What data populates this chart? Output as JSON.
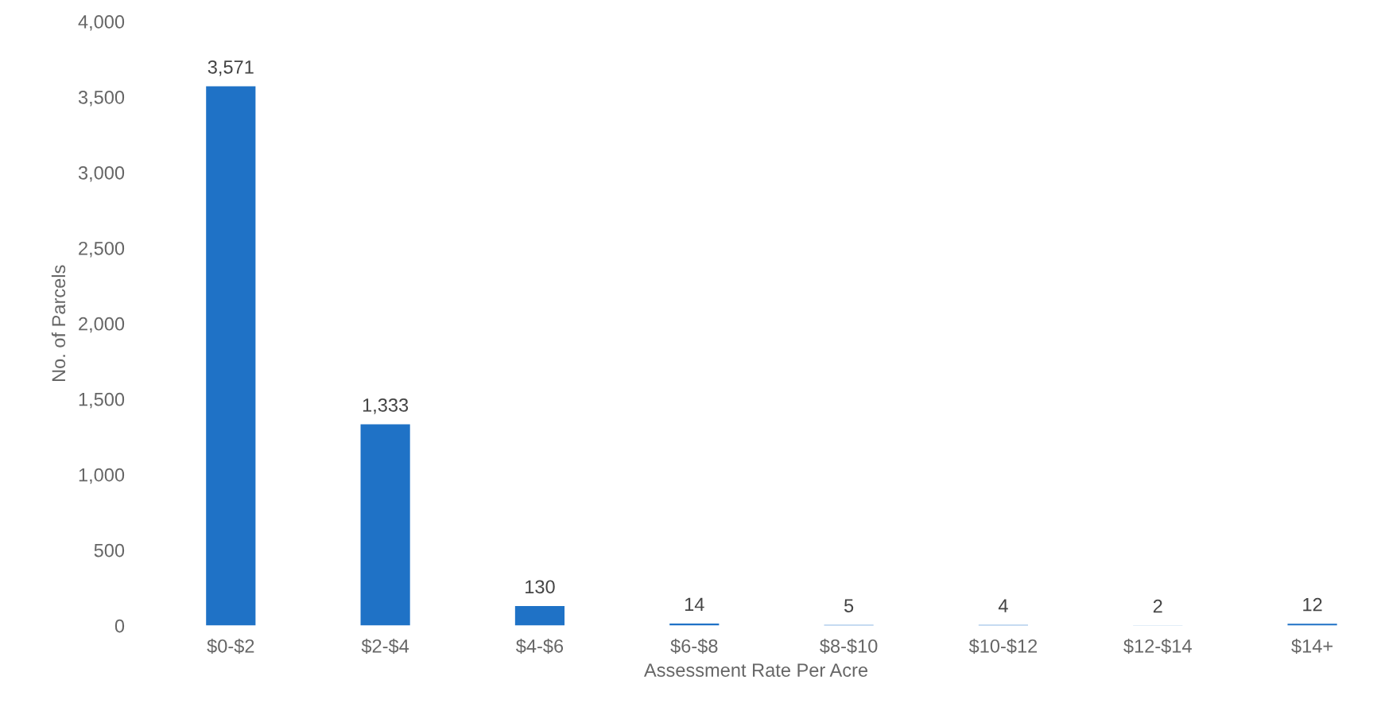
{
  "chart_data": {
    "type": "bar",
    "xlabel": "Assessment Rate Per Acre",
    "ylabel": "No. of Parcels",
    "categories": [
      "$0-$2",
      "$2-$4",
      "$4-$6",
      "$6-$8",
      "$8-$10",
      "$10-$12",
      "$12-$14",
      "$14+"
    ],
    "values": [
      3571,
      1333,
      130,
      14,
      5,
      4,
      2,
      12
    ],
    "value_labels": [
      "3,571",
      "1,333",
      "130",
      "14",
      "5",
      "4",
      "2",
      "12"
    ],
    "color": "#1f72c6",
    "ylim": [
      0,
      4000
    ],
    "yticks": [
      0,
      500,
      {
        "value": 1000,
        "label": "1,000"
      },
      {
        "value": 1500,
        "label": "1,500"
      },
      {
        "value": 2000,
        "label": "2,000"
      },
      {
        "value": 2500,
        "label": "2,500"
      },
      {
        "value": 3000,
        "label": "3,000"
      },
      {
        "value": 3500,
        "label": "3,500"
      },
      {
        "value": 4000,
        "label": "4,000"
      }
    ],
    "grid": false,
    "legend": false
  }
}
